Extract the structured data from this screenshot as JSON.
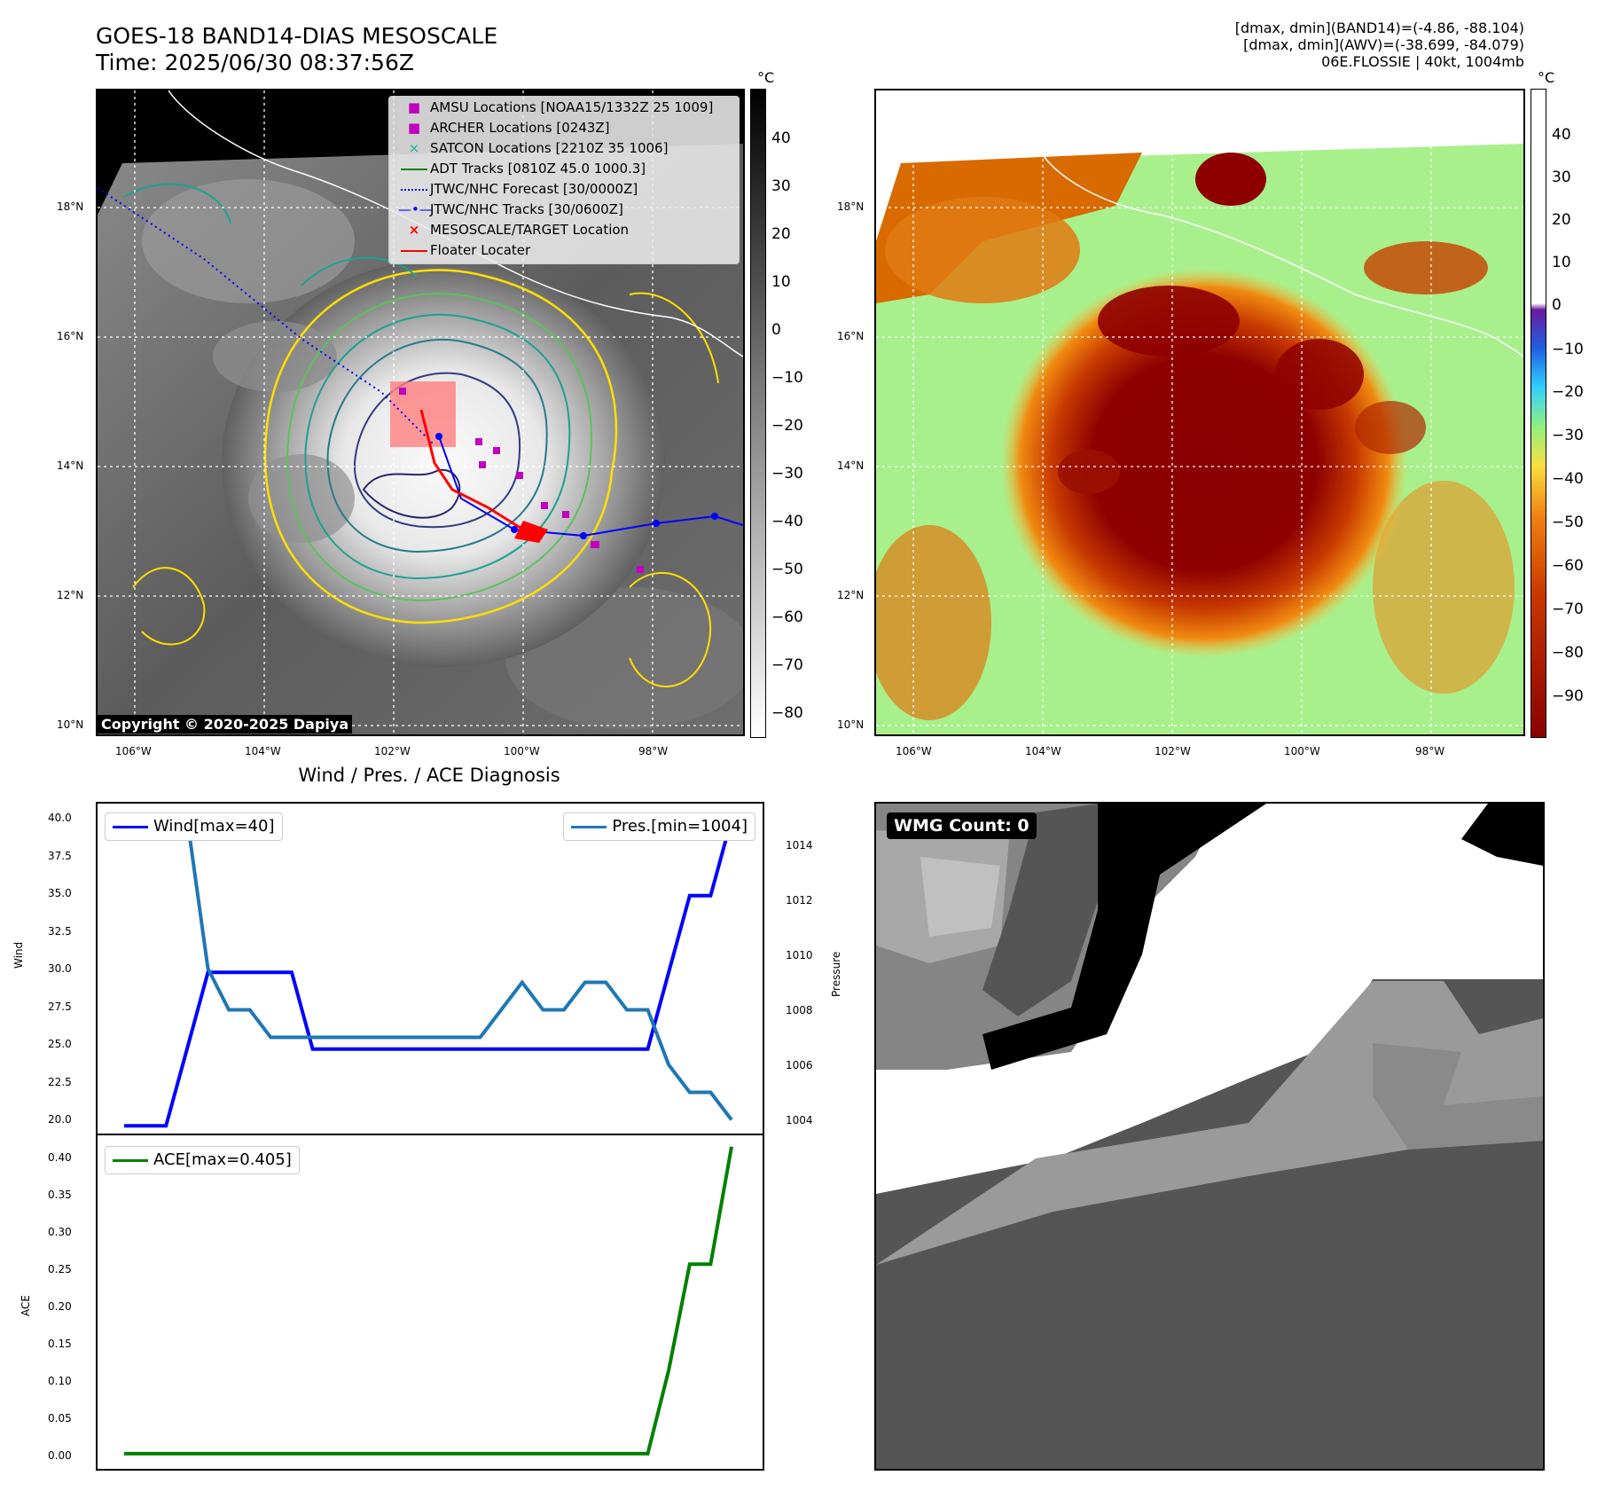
{
  "header": {
    "title_line1": "GOES-18 BAND14-DIAS MESOSCALE",
    "title_line2": "Time: 2025/06/30 08:37:56Z",
    "info_line1": "[dmax, dmin](BAND14)=(-4.86, -88.104)",
    "info_line2": "[dmax, dmin](AWV)=(-38.699, -84.079)",
    "info_line3": "06E.FLOSSIE | 40kt, 1004mb"
  },
  "map_axes": {
    "lon_labels": [
      "106°W",
      "104°W",
      "102°W",
      "100°W",
      "98°W"
    ],
    "lat_labels": [
      "18°N",
      "16°N",
      "14°N",
      "12°N",
      "10°N"
    ]
  },
  "ir_colorbar": {
    "unit": "°C",
    "ticks": [
      "40",
      "30",
      "20",
      "10",
      "0",
      "−10",
      "−20",
      "−30",
      "−40",
      "−50",
      "−60",
      "−70",
      "−80"
    ]
  },
  "awv_colorbar": {
    "unit": "°C",
    "ticks": [
      "40",
      "30",
      "20",
      "10",
      "0",
      "−10",
      "−20",
      "−30",
      "−40",
      "−50",
      "−60",
      "−70",
      "−80",
      "−90"
    ]
  },
  "legend": {
    "items": [
      {
        "label": "AMSU Locations [NOAA15/1332Z 25 1009]",
        "color": "#c000c0",
        "symbol": "■"
      },
      {
        "label": "ARCHER Locations [0243Z]",
        "color": "#c000c0",
        "symbol": "■"
      },
      {
        "label": "SATCON Locations [2210Z 35 1006]",
        "color": "#20b0b0",
        "symbol": "×"
      },
      {
        "label": "ADT Tracks [0810Z 45.0 1000.3]",
        "color": "#008000",
        "symbol": "line"
      },
      {
        "label": "JTWC/NHC Forecast [30/0000Z]",
        "color": "#0000ff",
        "symbol": "dotted"
      },
      {
        "label": "JTWC/NHC Tracks [30/0600Z]",
        "color": "#0000ff",
        "symbol": "line-dot"
      },
      {
        "label": "MESOSCALE/TARGET Location",
        "color": "#ff0000",
        "symbol": "×"
      },
      {
        "label": "Floater Locater",
        "color": "#ff0000",
        "symbol": "line"
      }
    ]
  },
  "copyright": "Copyright © 2020-2025 Dapiya",
  "wind_pres": {
    "title": "Wind / Pres. / ACE Diagnosis",
    "wind_ylabel": "Wind",
    "pres_ylabel": "Pressure",
    "ace_ylabel": "ACE",
    "wind_legend": "Wind[max=40]",
    "pres_legend": "Pres.[min=1004]",
    "ace_legend": "ACE[max=0.405]",
    "wind_ticks": [
      "40.0",
      "37.5",
      "35.0",
      "32.5",
      "30.0",
      "27.5",
      "25.0",
      "22.5",
      "20.0"
    ],
    "pres_ticks": [
      "1014",
      "1012",
      "1010",
      "1008",
      "1006",
      "1004"
    ],
    "ace_ticks": [
      "0.40",
      "0.35",
      "0.30",
      "0.25",
      "0.20",
      "0.15",
      "0.10",
      "0.05",
      "0.00"
    ]
  },
  "wmg": {
    "label": "WMG Count: 0"
  },
  "colors": {
    "wind": "#0000ff",
    "pressure": "#1f77b4",
    "ace": "#008000"
  },
  "chart_data": [
    {
      "type": "line",
      "title": "Wind / Pres. / ACE Diagnosis",
      "ylabel": "Wind",
      "ylim": [
        19.5,
        41
      ],
      "series": [
        {
          "name": "Wind[max=40]",
          "values": [
            20,
            20,
            20,
            25,
            30,
            30,
            30,
            30,
            30,
            25,
            25,
            25,
            25,
            25,
            25,
            25,
            25,
            25,
            25,
            25,
            25,
            25,
            25,
            25,
            25,
            25,
            30,
            35,
            35,
            40
          ]
        }
      ]
    },
    {
      "type": "line",
      "ylabel": "Pressure",
      "ylim": [
        1003.5,
        1015.5
      ],
      "series": [
        {
          "name": "Pres.[min=1004]",
          "values": [
            1015,
            1015,
            1015,
            1015,
            1009.5,
            1008,
            1008,
            1007,
            1007,
            1007,
            1007,
            1007,
            1007,
            1007,
            1007,
            1007,
            1007,
            1007,
            1008,
            1009,
            1008,
            1008,
            1009,
            1009,
            1008,
            1008,
            1006,
            1005,
            1005,
            1004
          ]
        }
      ]
    },
    {
      "type": "line",
      "ylabel": "ACE",
      "ylim": [
        -0.02,
        0.42
      ],
      "series": [
        {
          "name": "ACE[max=0.405]",
          "values": [
            0,
            0,
            0,
            0,
            0,
            0,
            0,
            0,
            0,
            0,
            0,
            0,
            0,
            0,
            0,
            0,
            0,
            0,
            0,
            0,
            0,
            0,
            0,
            0,
            0,
            0,
            0.11,
            0.25,
            0.25,
            0.405
          ]
        }
      ]
    }
  ]
}
